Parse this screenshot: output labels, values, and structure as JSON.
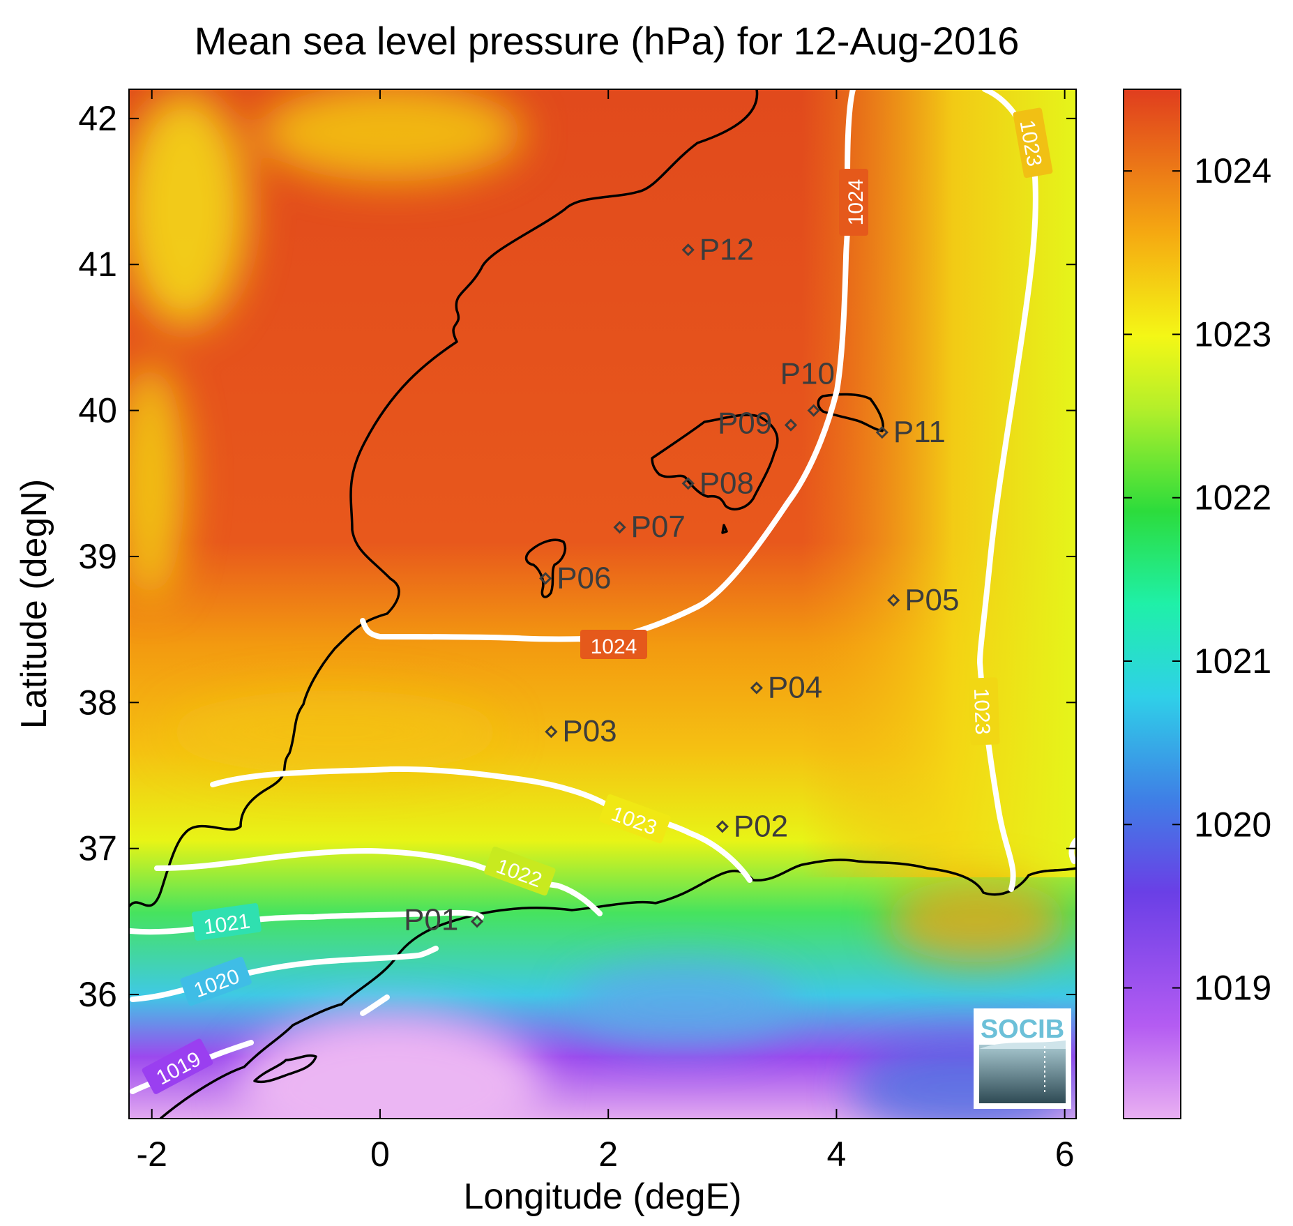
{
  "title": "Mean sea level pressure (hPa) for 12-Aug-2016",
  "axes": {
    "xlabel": "Longitude (degE)",
    "ylabel": "Latitude (degN)",
    "xlim": [
      -2.2,
      6.1
    ],
    "ylim": [
      35.15,
      42.2
    ],
    "xticks": [
      -2,
      0,
      2,
      4,
      6
    ],
    "xtick_labels": [
      "-2",
      "0",
      "2",
      "4",
      "6"
    ],
    "yticks": [
      36,
      37,
      38,
      39,
      40,
      41,
      42
    ],
    "ytick_labels": [
      "36",
      "37",
      "38",
      "39",
      "40",
      "41",
      "42"
    ]
  },
  "colorbar": {
    "range": [
      1018.2,
      1024.5
    ],
    "ticks": [
      1019,
      1020,
      1021,
      1022,
      1023,
      1024
    ],
    "tick_labels": [
      "1019",
      "1020",
      "1021",
      "1022",
      "1023",
      "1024"
    ],
    "colors": [
      "#e9b0f2",
      "#9a3df0",
      "#3f7fe6",
      "#27e2e6",
      "#2fe05a",
      "#f1f514",
      "#f59b0e",
      "#e0441c"
    ]
  },
  "contour_labels": [
    "1024",
    "1024",
    "1023",
    "1023",
    "1023",
    "1022",
    "1021",
    "1020",
    "1019"
  ],
  "stations": [
    {
      "id": "P01",
      "lon": 0.85,
      "lat": 36.5
    },
    {
      "id": "P02",
      "lon": 3.0,
      "lat": 37.15
    },
    {
      "id": "P03",
      "lon": 1.5,
      "lat": 37.8
    },
    {
      "id": "P04",
      "lon": 3.3,
      "lat": 38.1
    },
    {
      "id": "P05",
      "lon": 4.5,
      "lat": 38.7
    },
    {
      "id": "P06",
      "lon": 1.45,
      "lat": 38.85
    },
    {
      "id": "P07",
      "lon": 2.1,
      "lat": 39.2
    },
    {
      "id": "P08",
      "lon": 2.7,
      "lat": 39.5
    },
    {
      "id": "P09",
      "lon": 3.6,
      "lat": 39.9
    },
    {
      "id": "P10",
      "lon": 3.8,
      "lat": 40.0
    },
    {
      "id": "P11",
      "lon": 4.4,
      "lat": 39.85
    },
    {
      "id": "P12",
      "lon": 2.7,
      "lat": 41.1
    }
  ],
  "logo": {
    "text": "SOCIB"
  }
}
